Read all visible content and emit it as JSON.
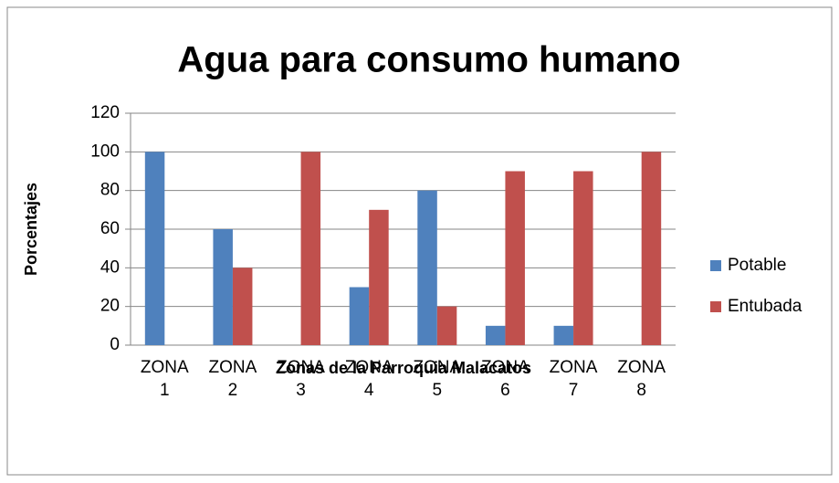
{
  "chart_data": {
    "type": "bar",
    "title": "Agua para consumo humano",
    "categories": [
      "ZONA 1",
      "ZONA 2",
      "ZONA 3",
      "ZONA 4",
      "ZONA 5",
      "ZONA 6",
      "ZONA 7",
      "ZONA 8"
    ],
    "series": [
      {
        "name": "Potable",
        "color": "#4f81bd",
        "values": [
          100,
          60,
          0,
          30,
          80,
          10,
          10,
          0
        ]
      },
      {
        "name": "Entubada",
        "color": "#c0504d",
        "values": [
          0,
          40,
          100,
          70,
          20,
          90,
          90,
          100
        ]
      }
    ],
    "ylim": [
      0,
      120
    ],
    "yticks": [
      0,
      20,
      40,
      60,
      80,
      100,
      120
    ],
    "grid": true,
    "y_label": "Porcentajes",
    "x_label": "Zonas de la Parroquia Malacatos",
    "legend": "right"
  }
}
